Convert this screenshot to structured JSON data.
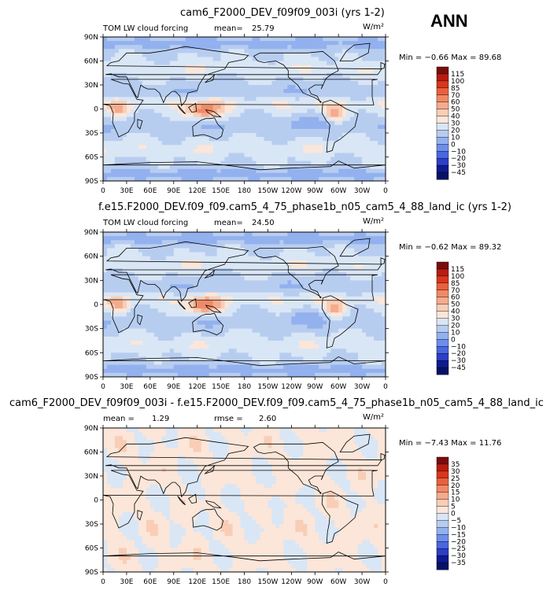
{
  "season_label": "ANN",
  "chart_data": [
    {
      "type": "heatmap",
      "title": "cam6_F2000_DEV_f09f09_003i (yrs 1-2)",
      "left_label": "TOM LW cloud forcing",
      "mean_label": "mean=",
      "mean_value": "25.79",
      "units_label": "W/m²",
      "minmax_text": "Min =  −0.66 Max =  89.68",
      "min": -0.66,
      "max": 89.68,
      "mean": 25.79,
      "colorbar_levels": [
        "115",
        "100",
        "85",
        "70",
        "60",
        "50",
        "40",
        "30",
        "20",
        "10",
        "0",
        "−10",
        "−20",
        "−30",
        "−45"
      ],
      "xticks": [
        "0",
        "30E",
        "60E",
        "90E",
        "120E",
        "150E",
        "180",
        "150W",
        "120W",
        "90W",
        "60W",
        "30W",
        "0"
      ],
      "yticks": [
        "90N",
        "60N",
        "30N",
        "0",
        "30S",
        "60S",
        "90S"
      ]
    },
    {
      "type": "heatmap",
      "title": "f.e15.F2000_DEV.f09_f09.cam5_4_75_phase1b_n05_cam5_4_88_land_ic (yrs 1-2)",
      "left_label": "TOM LW cloud forcing",
      "mean_label": "mean=",
      "mean_value": "24.50",
      "units_label": "W/m²",
      "minmax_text": "Min =  −0.62 Max =  89.32",
      "min": -0.62,
      "max": 89.32,
      "mean": 24.5,
      "colorbar_levels": [
        "115",
        "100",
        "85",
        "70",
        "60",
        "50",
        "40",
        "30",
        "20",
        "10",
        "0",
        "−10",
        "−20",
        "−30",
        "−45"
      ],
      "xticks": [
        "0",
        "30E",
        "60E",
        "90E",
        "120E",
        "150E",
        "180",
        "150W",
        "120W",
        "90W",
        "60W",
        "30W",
        "0"
      ],
      "yticks": [
        "90N",
        "60N",
        "30N",
        "0",
        "30S",
        "60S",
        "90S"
      ]
    },
    {
      "type": "heatmap",
      "title": "cam6_F2000_DEV_f09f09_003i - f.e15.F2000_DEV.f09_f09.cam5_4_75_phase1b_n05_cam5_4_88_land_ic",
      "left_label": "mean =",
      "mean_value": "1.29",
      "rmse_label": "rmse =",
      "rmse_value": "2.60",
      "units_label": "W/m²",
      "minmax_text": "Min =  −7.43 Max =  11.76",
      "min": -7.43,
      "max": 11.76,
      "mean": 1.29,
      "rmse": 2.6,
      "colorbar_levels": [
        "35",
        "30",
        "25",
        "20",
        "15",
        "10",
        "5",
        "0",
        "−5",
        "−10",
        "−15",
        "−20",
        "−25",
        "−30",
        "−35"
      ],
      "xticks": [
        "0",
        "30E",
        "60E",
        "90E",
        "120E",
        "150E",
        "180",
        "150W",
        "120W",
        "90W",
        "60W",
        "30W",
        "0"
      ],
      "yticks": [
        "90N",
        "60N",
        "30N",
        "0",
        "30S",
        "60S",
        "90S"
      ]
    }
  ],
  "colors": {
    "abs_scale": [
      "#7a0d0d",
      "#b81c10",
      "#d9361c",
      "#e8613f",
      "#f08a66",
      "#f5ab8d",
      "#f9cdb6",
      "#fbe6d9",
      "#d9e6f5",
      "#b7cdf0",
      "#93b1ee",
      "#6d8eeb",
      "#4a66e0",
      "#2c3fc8",
      "#0f1a8f",
      "#061266"
    ],
    "diff_scale": [
      "#7a0d0d",
      "#b81c10",
      "#d9361c",
      "#e8613f",
      "#f08a66",
      "#f5ab8d",
      "#f9cdb6",
      "#fbe6d9",
      "#d9e6f5",
      "#b7cdf0",
      "#93b1ee",
      "#6d8eeb",
      "#4a66e0",
      "#2c3fc8",
      "#0f1a8f",
      "#061266"
    ]
  }
}
